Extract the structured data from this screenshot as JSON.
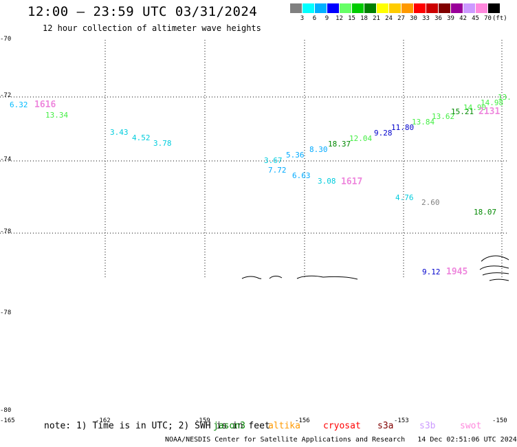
{
  "header": {
    "title": "12:00 — 23:59 UTC 03/31/2024",
    "subtitle": "12 hour collection of altimeter wave heights"
  },
  "legend": {
    "unit": "(ft)",
    "colors": [
      "#808080",
      "#00ffff",
      "#00b0ff",
      "#0000ff",
      "#66ff66",
      "#00cc00",
      "#008000",
      "#ffff00",
      "#ffcc00",
      "#ff9900",
      "#ff0000",
      "#cc0000",
      "#800000",
      "#990099",
      "#cc99ff",
      "#ff88dd",
      "#000000"
    ],
    "labels": [
      "3",
      "6",
      "9",
      "12",
      "15",
      "18",
      "21",
      "24",
      "27",
      "30",
      "33",
      "36",
      "39",
      "42",
      "45",
      "70"
    ]
  },
  "axes": {
    "lat_labels": [
      "-70",
      "-72",
      "-74",
      "-78",
      "-78",
      "-80"
    ],
    "lon_labels": [
      "-165",
      "-162",
      "-159",
      "-156",
      "-153",
      "-150"
    ]
  },
  "observations": [
    {
      "text": "6.32",
      "color": "#00bbff"
    },
    {
      "text": "13.34",
      "color": "#44ee44"
    },
    {
      "text": "3.43",
      "color": "#00ccdd"
    },
    {
      "text": "4.52",
      "color": "#00ccdd"
    },
    {
      "text": "3.78",
      "color": "#00ccdd"
    },
    {
      "text": "3.67",
      "color": "#00ccdd"
    },
    {
      "text": "7.72",
      "color": "#00aaff"
    },
    {
      "text": "5.36",
      "color": "#00aaff"
    },
    {
      "text": "6.63",
      "color": "#00aaff"
    },
    {
      "text": "8.30",
      "color": "#00aaff"
    },
    {
      "text": "3.08",
      "color": "#00ccdd"
    },
    {
      "text": "18.37",
      "color": "#008800"
    },
    {
      "text": "12.04",
      "color": "#44ee44"
    },
    {
      "text": "9.28",
      "color": "#0000cc"
    },
    {
      "text": "11.80",
      "color": "#0000cc"
    },
    {
      "text": "13.84",
      "color": "#44ee44"
    },
    {
      "text": "13.62",
      "color": "#44ee44"
    },
    {
      "text": "15.21",
      "color": "#008800"
    },
    {
      "text": "14.90",
      "color": "#44ee44"
    },
    {
      "text": "14.98",
      "color": "#44ee44"
    },
    {
      "text": "13.",
      "color": "#44ee44"
    },
    {
      "text": "4.76",
      "color": "#00ccdd"
    },
    {
      "text": "2.60",
      "color": "#808080"
    },
    {
      "text": "18.07",
      "color": "#008800"
    },
    {
      "text": "9.12",
      "color": "#0000cc"
    }
  ],
  "passes": [
    {
      "text": "1616",
      "color": "#ee88dd"
    },
    {
      "text": "1617",
      "color": "#ee88dd"
    },
    {
      "text": "2131",
      "color": "#ee88dd"
    },
    {
      "text": "1945",
      "color": "#ee88dd"
    }
  ],
  "footer": {
    "note": "note: 1) Time is in UTC; 2) SWH is in feet",
    "satellites": [
      {
        "name": "jason3",
        "color": "#008000"
      },
      {
        "name": "altika",
        "color": "#ff9900"
      },
      {
        "name": "cryosat",
        "color": "#ff0000"
      },
      {
        "name": "s3a",
        "color": "#800000"
      },
      {
        "name": "s3b",
        "color": "#cc99ff"
      },
      {
        "name": "swot",
        "color": "#ff88dd"
      }
    ],
    "credit": "NOAA/NESDIS Center for Satellite Applications and Research",
    "generated": "14 Dec 02:51:06 UTC 2024"
  }
}
